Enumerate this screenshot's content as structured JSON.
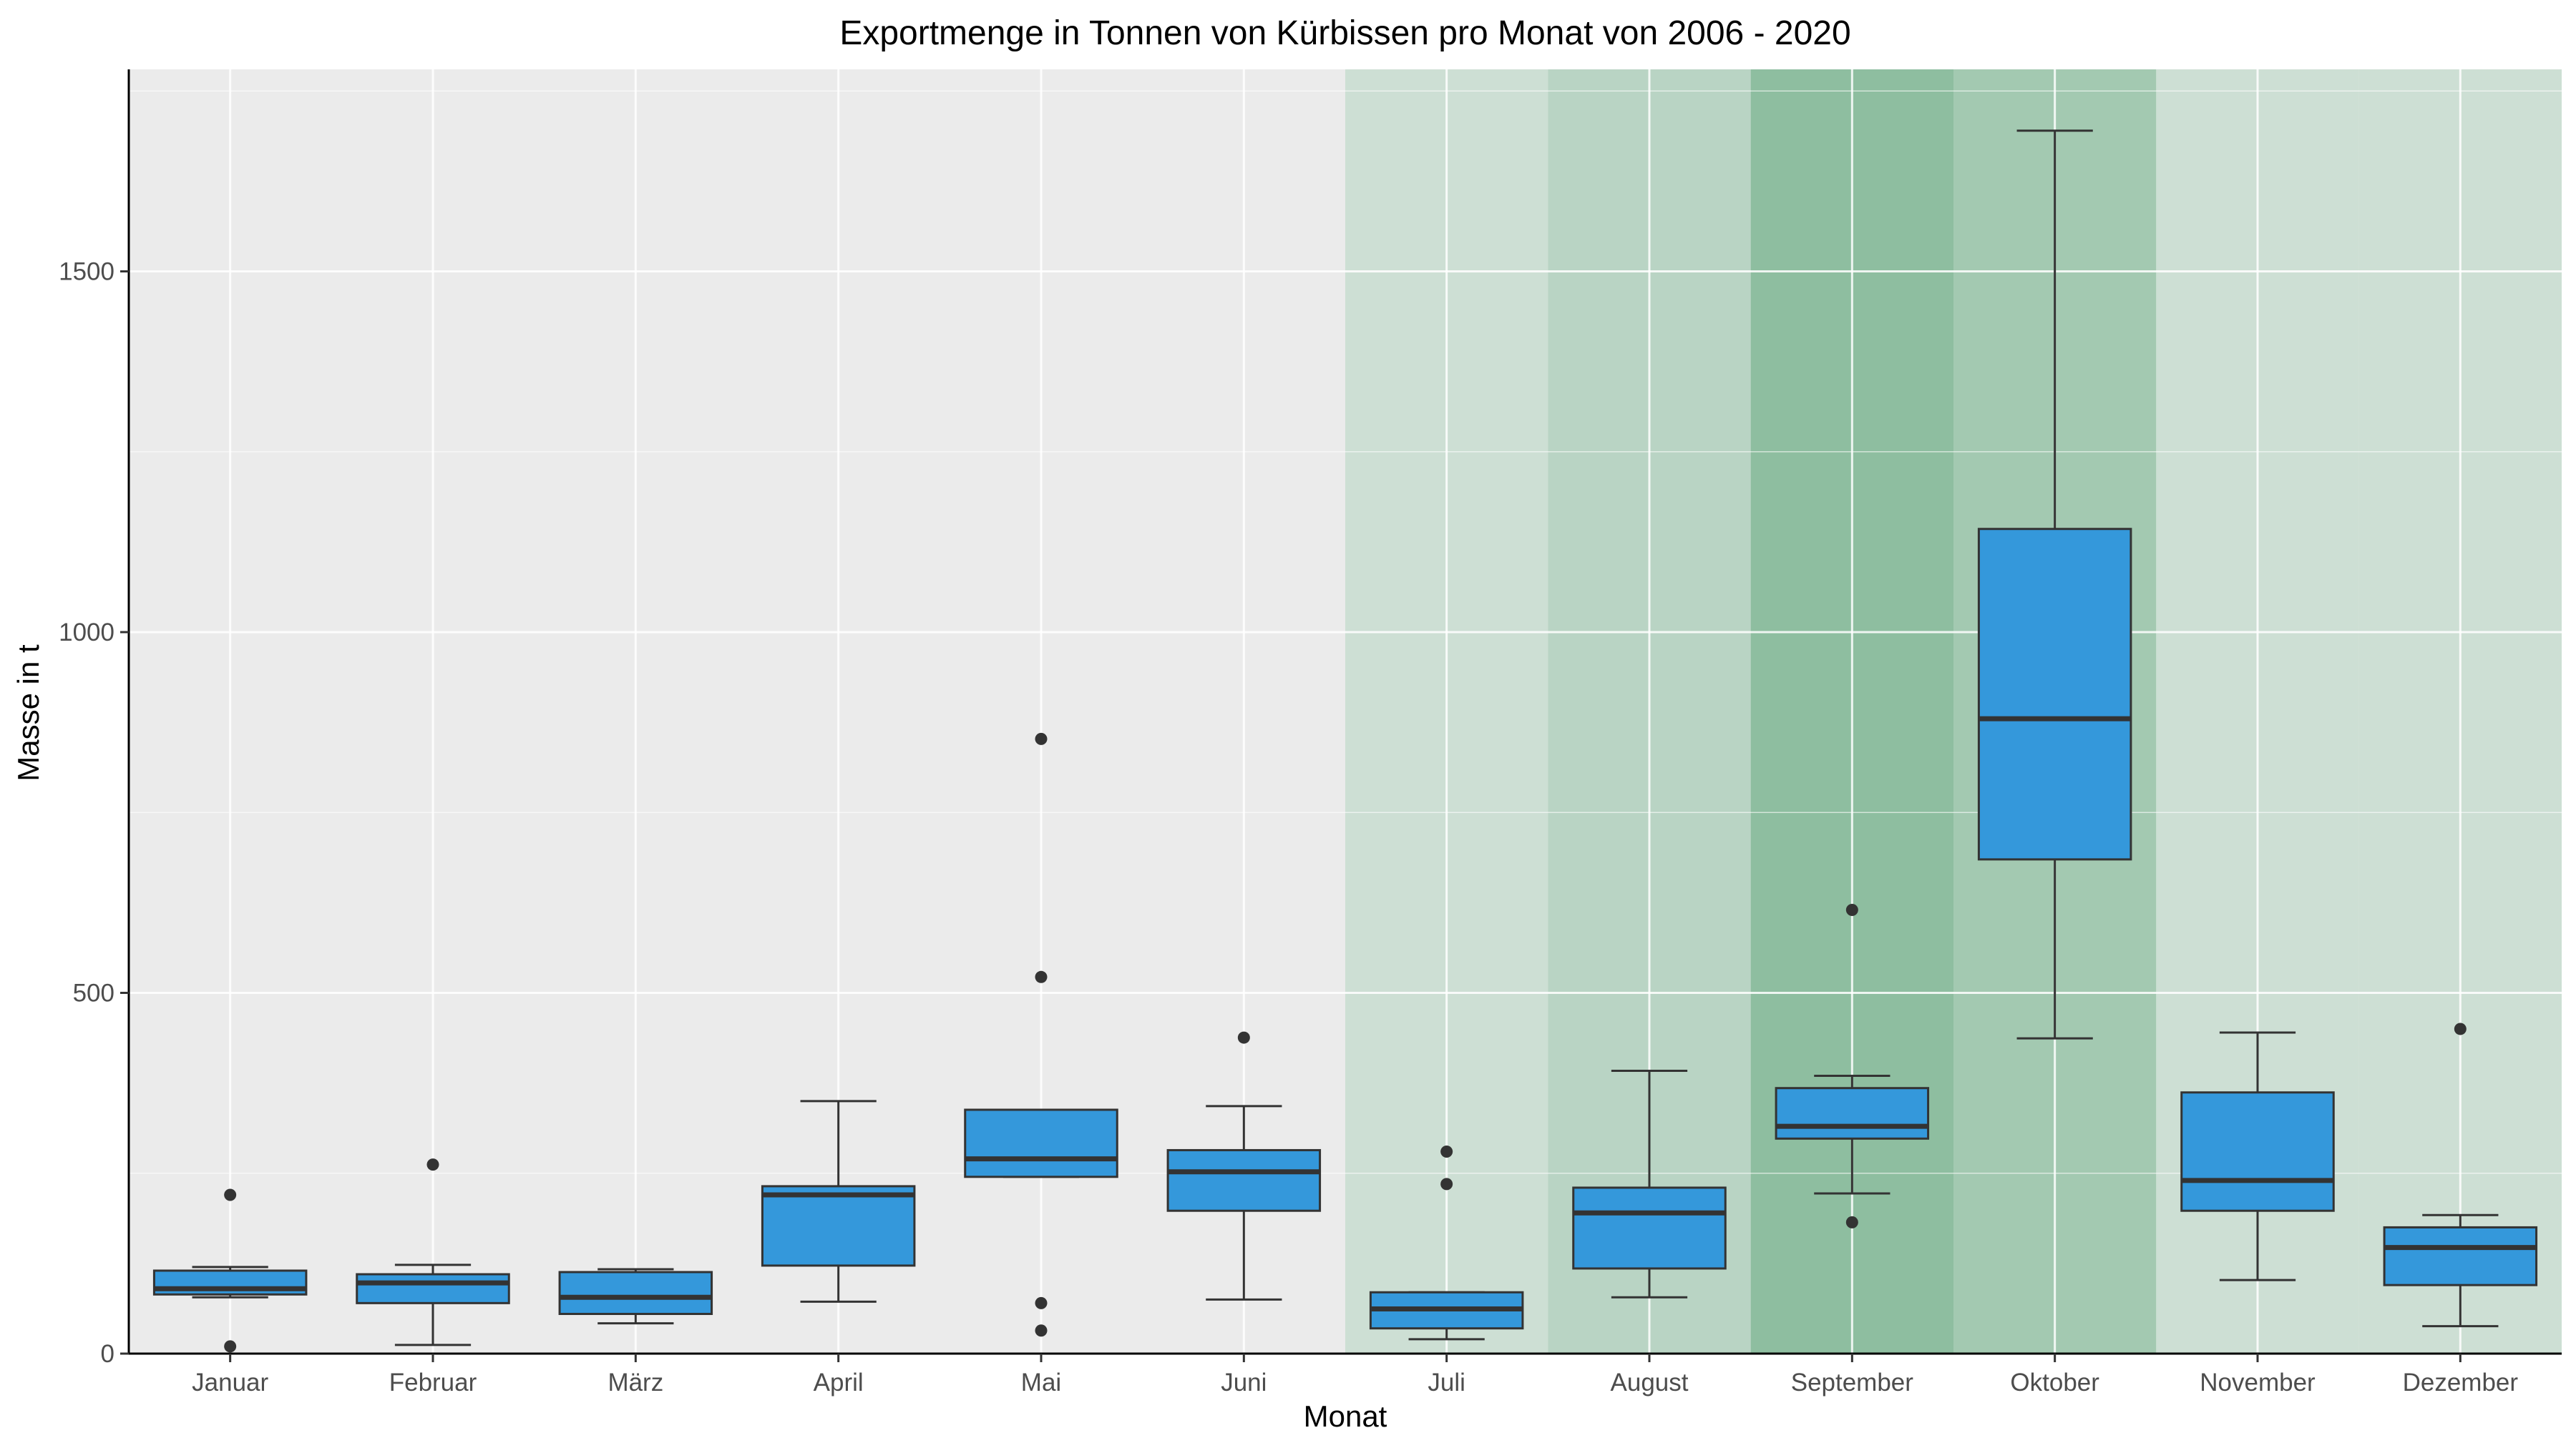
{
  "chart_data": {
    "type": "boxplot",
    "title": "Exportmenge in Tonnen von Kürbissen pro Monat von 2006 - 2020",
    "xlabel": "Monat",
    "ylabel": "Masse in t",
    "ylim": [
      0,
      1780
    ],
    "yticks": [
      0,
      500,
      1000,
      1500
    ],
    "grid": true,
    "legend": "none",
    "colors": {
      "panel_background": "#ebebeb",
      "grid": "#ffffff",
      "box_fill": "#3498db",
      "box_stroke": "#333333",
      "outlier": "#333333"
    },
    "season_shading": [
      {
        "month": "Juli",
        "color": "#cddfd4"
      },
      {
        "month": "August",
        "color": "#b9d4c4"
      },
      {
        "month": "September",
        "color": "#8ebea0"
      },
      {
        "month": "Oktober",
        "color": "#a3c9b1"
      },
      {
        "month": "November",
        "color": "#cddfd4"
      },
      {
        "month": "Dezember",
        "color": "#cddfd4"
      }
    ],
    "categories": [
      "Januar",
      "Februar",
      "März",
      "April",
      "Mai",
      "Juni",
      "Juli",
      "August",
      "September",
      "Oktober",
      "November",
      "Dezember"
    ],
    "boxes": [
      {
        "min": 78,
        "q1": 82,
        "median": 90,
        "q3": 115,
        "max": 120,
        "outliers": [
          10,
          220
        ]
      },
      {
        "min": 12,
        "q1": 70,
        "median": 98,
        "q3": 110,
        "max": 123,
        "outliers": [
          262
        ]
      },
      {
        "min": 42,
        "q1": 55,
        "median": 78,
        "q3": 113,
        "max": 117,
        "outliers": []
      },
      {
        "min": 72,
        "q1": 122,
        "median": 220,
        "q3": 232,
        "max": 350,
        "outliers": []
      },
      {
        "min": 245,
        "q1": 245,
        "median": 270,
        "q3": 338,
        "max": 338,
        "outliers": [
          852,
          522,
          70,
          32
        ]
      },
      {
        "min": 75,
        "q1": 198,
        "median": 252,
        "q3": 282,
        "max": 343,
        "outliers": [
          438
        ]
      },
      {
        "min": 20,
        "q1": 35,
        "median": 62,
        "q3": 85,
        "max": 85,
        "outliers": [
          280,
          235
        ]
      },
      {
        "min": 78,
        "q1": 118,
        "median": 195,
        "q3": 230,
        "max": 392,
        "outliers": []
      },
      {
        "min": 222,
        "q1": 298,
        "median": 315,
        "q3": 368,
        "max": 385,
        "outliers": [
          615,
          182
        ]
      },
      {
        "min": 437,
        "q1": 685,
        "median": 880,
        "q3": 1143,
        "max": 1695,
        "outliers": []
      },
      {
        "min": 102,
        "q1": 198,
        "median": 240,
        "q3": 362,
        "max": 445,
        "outliers": []
      },
      {
        "min": 38,
        "q1": 95,
        "median": 147,
        "q3": 175,
        "max": 192,
        "outliers": [
          450
        ]
      }
    ]
  }
}
